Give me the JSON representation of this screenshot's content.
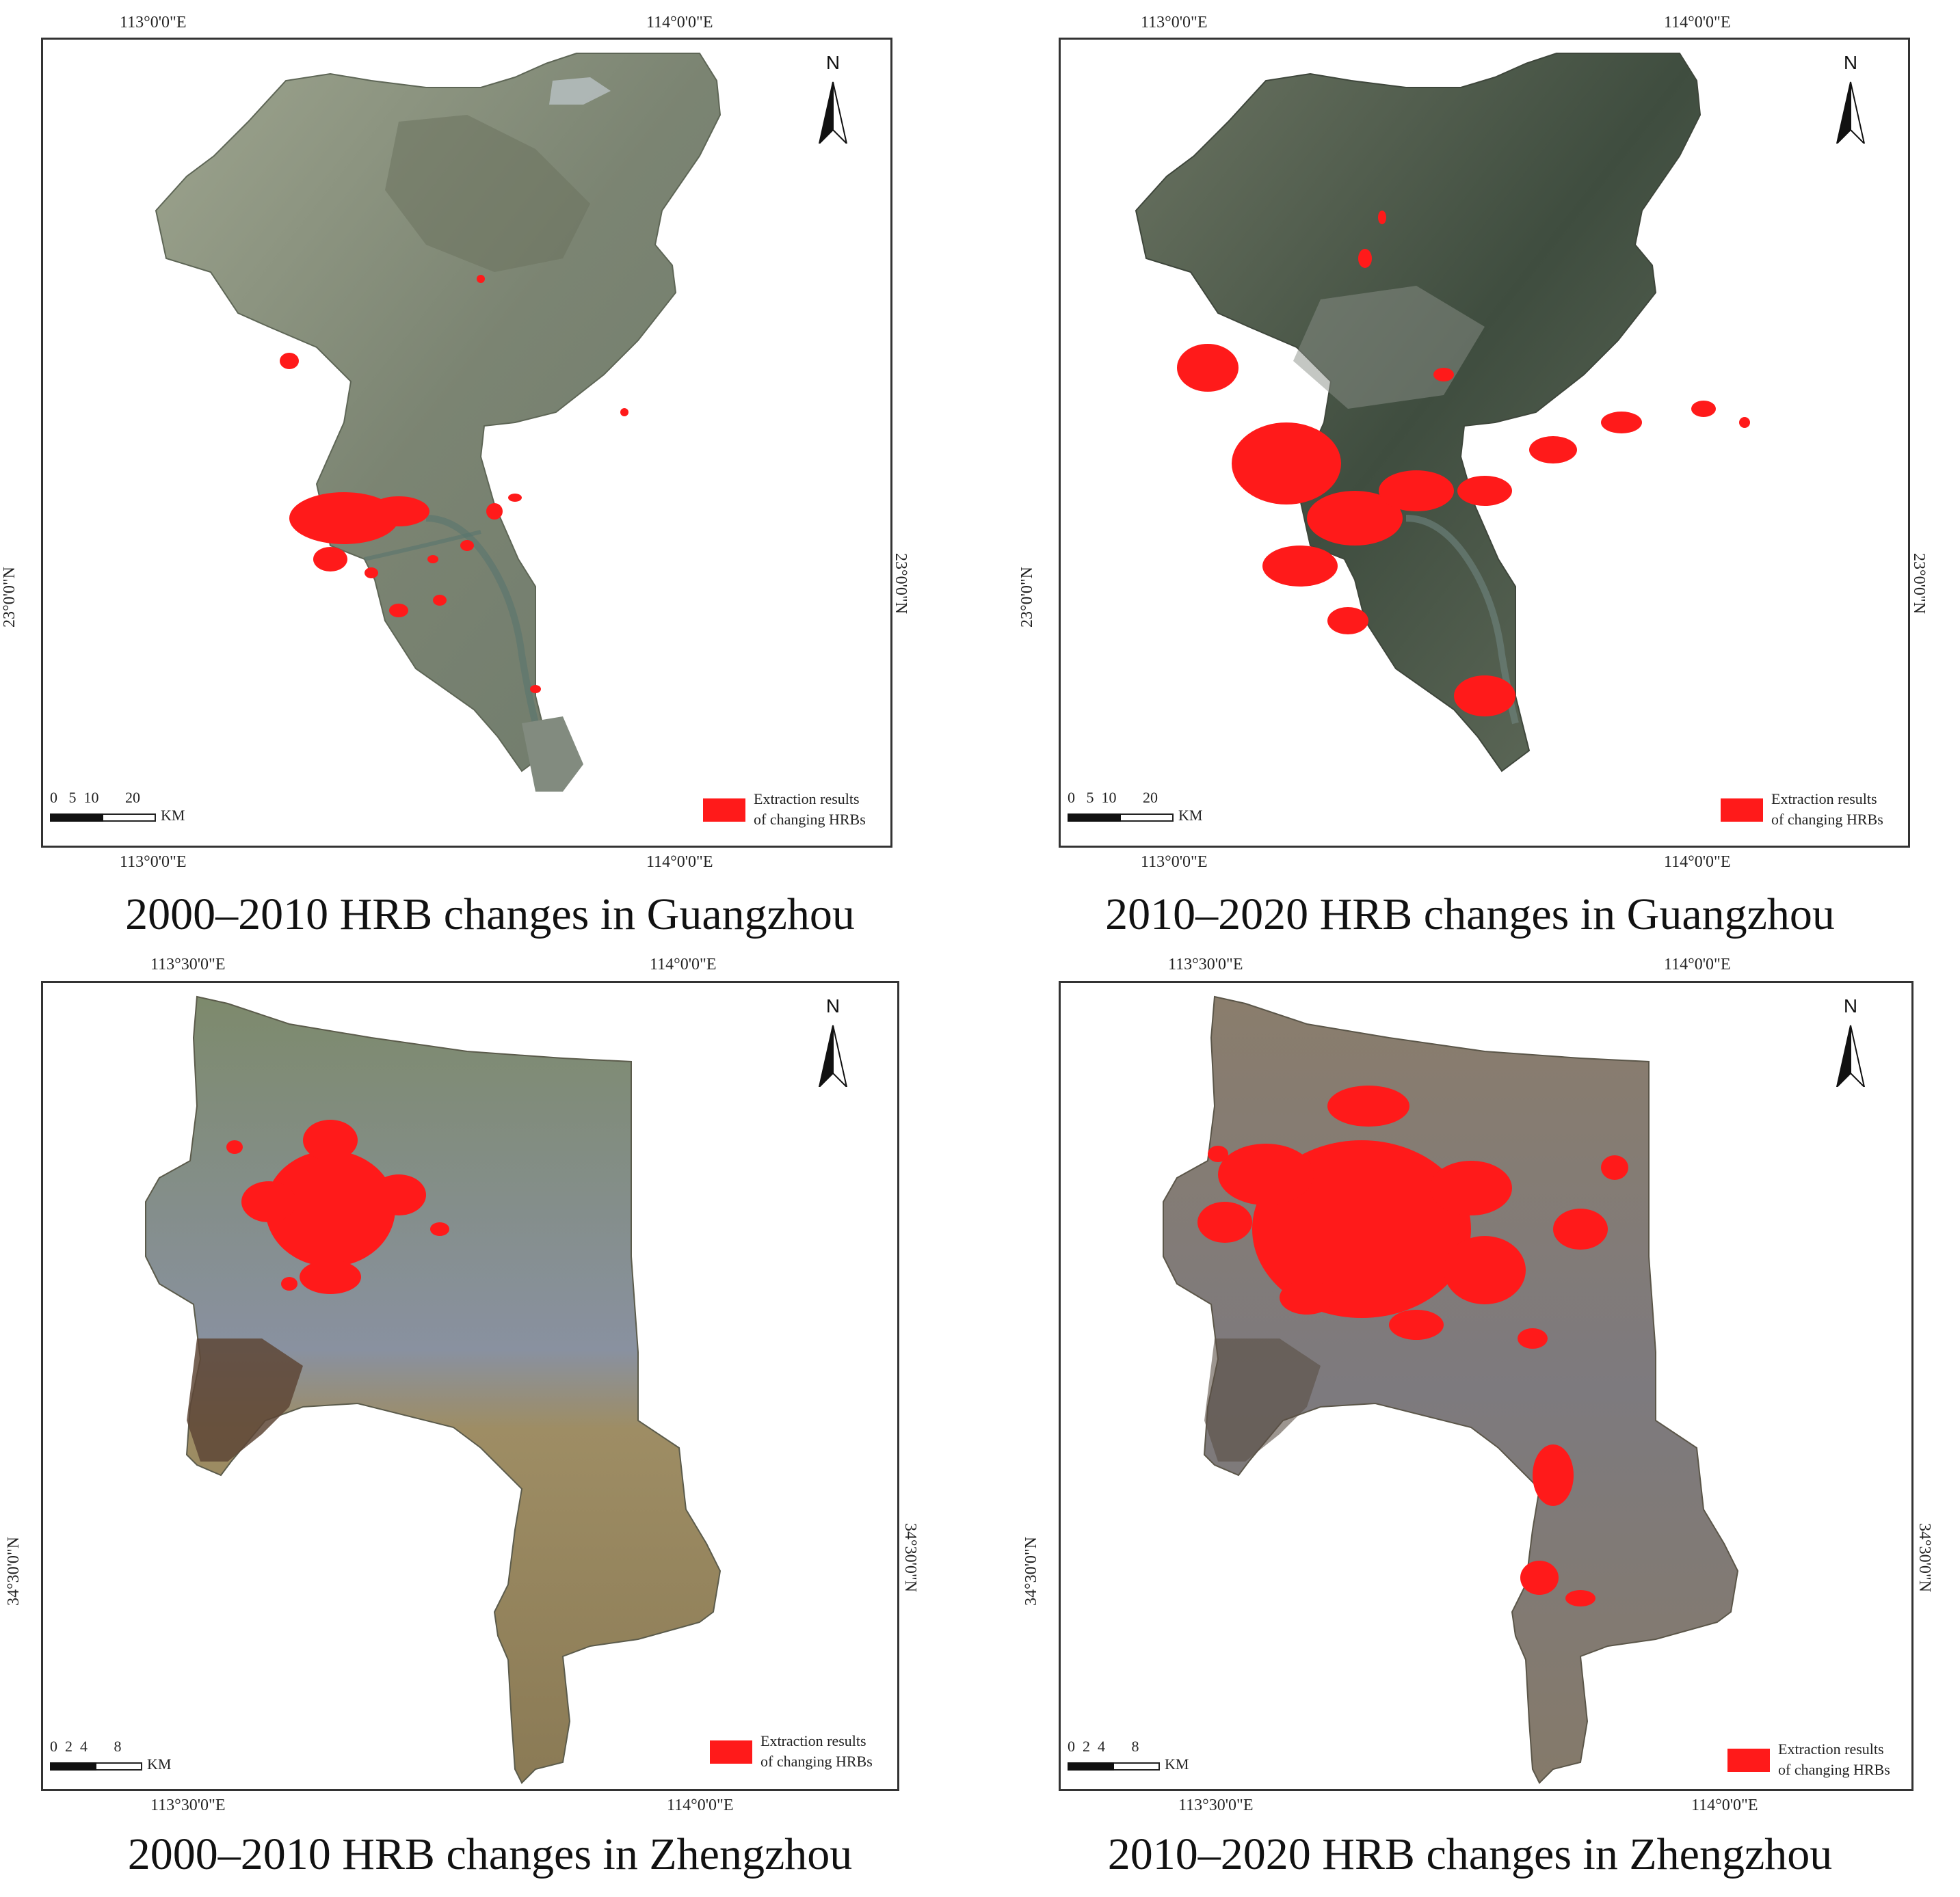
{
  "panels": [
    {
      "caption": "2000–2010 HRB changes in Guangzhou",
      "top_labels": [
        "113°0'0\"E",
        "114°0'0\"E"
      ],
      "bottom_labels": [
        "113°0'0\"E",
        "114°0'0\"E"
      ],
      "left_label": "23°0'0\"N",
      "right_label": "23°0'0\"N",
      "north": "N",
      "scale_numbers": "0   5  10       20",
      "scale_unit": "KM",
      "legend_line1": "Extraction results",
      "legend_line2": "of changing HRBs"
    },
    {
      "caption": "2010–2020 HRB changes in Guangzhou",
      "top_labels": [
        "113°0'0\"E",
        "114°0'0\"E"
      ],
      "bottom_labels": [
        "113°0'0\"E",
        "114°0'0\"E"
      ],
      "left_label": "23°0'0\"N",
      "right_label": "23°0'0\"N",
      "north": "N",
      "scale_numbers": "0   5  10       20",
      "scale_unit": "KM",
      "legend_line1": "Extraction results",
      "legend_line2": "of changing HRBs"
    },
    {
      "caption": "2000–2010 HRB changes in Zhengzhou",
      "top_labels": [
        "113°30'0\"E",
        "114°0'0\"E"
      ],
      "bottom_labels": [
        "113°30'0\"E",
        "114°0'0\"E"
      ],
      "left_label": "34°30'0\"N",
      "right_label": "34°30'0\"N",
      "north": "N",
      "scale_numbers": "0  2  4       8",
      "scale_unit": "KM",
      "legend_line1": "Extraction results",
      "legend_line2": "of changing HRBs"
    },
    {
      "caption": "2010–2020 HRB changes in Zhengzhou",
      "top_labels": [
        "113°30'0\"E",
        "114°0'0\"E"
      ],
      "bottom_labels": [
        "113°30'0\"E",
        "114°0'0\"E"
      ],
      "left_label": "34°30'0\"N",
      "right_label": "34°30'0\"N",
      "north": "N",
      "scale_numbers": "0  2  4       8",
      "scale_unit": "KM",
      "legend_line1": "Extraction results",
      "legend_line2": "of changing HRBs"
    }
  ],
  "colors": {
    "hrb_change": "#ff1a1a",
    "frame": "#333333",
    "guangzhou_2000": "#7d8676",
    "guangzhou_2010": "#4a5a4c",
    "zhengzhou_2000": "#8d8a6a",
    "zhengzhou_2010": "#7f7870"
  }
}
